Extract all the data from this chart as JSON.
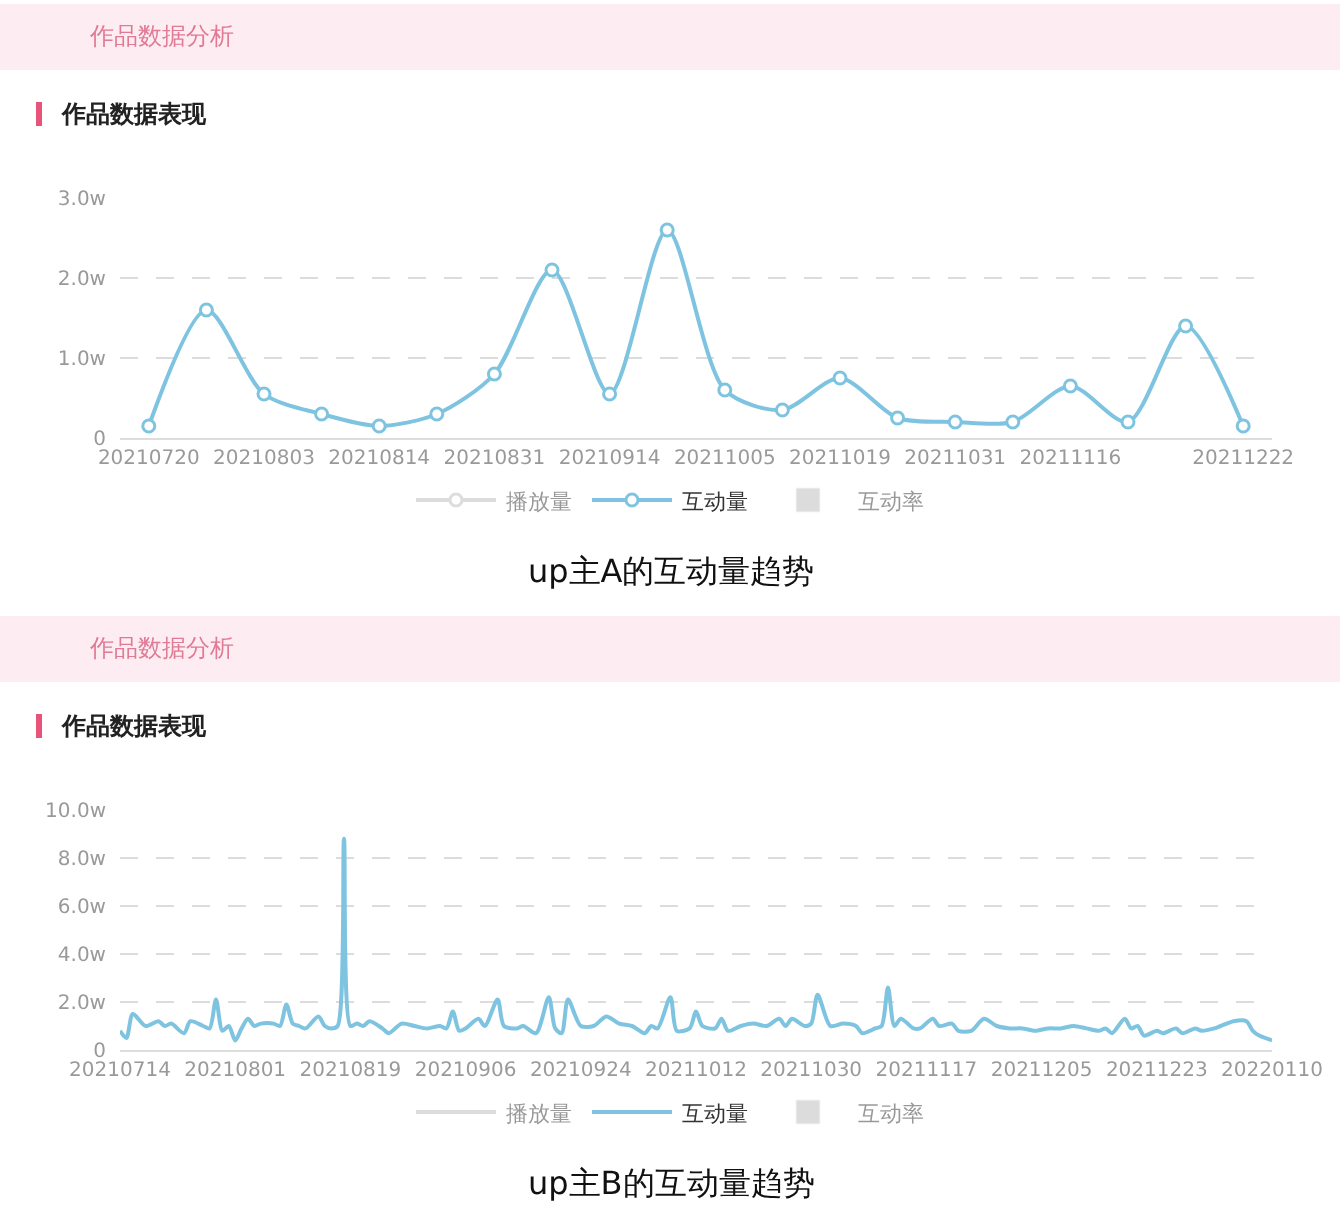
{
  "chart_data": [
    {
      "type": "line",
      "title": "作品数据分析",
      "subtitle": "作品数据表现",
      "annotations": [
        "up主A的互动量趋势"
      ],
      "categories": [
        "20210720",
        null,
        "20210803",
        null,
        "20210814",
        null,
        "20210831",
        null,
        "20210914",
        null,
        "20211005",
        null,
        "20211019",
        null,
        "20211031",
        null,
        "20211116",
        null,
        null,
        "20211222"
      ],
      "series": [
        {
          "name": "播放量",
          "color": "#bbbbbb",
          "values": [
            null,
            null,
            null,
            null,
            null,
            null,
            null,
            null,
            null,
            null,
            null,
            null,
            null,
            null,
            null,
            null,
            null,
            null,
            null,
            null
          ]
        },
        {
          "name": "互动量",
          "color": "#7ec4e0",
          "values": [
            0.15,
            1.6,
            0.55,
            0.3,
            0.15,
            0.3,
            0.8,
            2.1,
            0.55,
            2.6,
            0.6,
            0.35,
            0.75,
            0.25,
            0.2,
            0.2,
            0.65,
            0.2,
            1.4,
            0.15
          ]
        },
        {
          "name": "互动率",
          "type": "bar",
          "color": "#bbbbbb",
          "values": [
            null,
            null,
            null,
            null,
            null,
            null,
            null,
            null,
            null,
            null,
            null,
            null,
            null,
            null,
            null,
            null,
            null,
            null,
            null,
            null
          ]
        }
      ],
      "ylim": [
        0,
        3
      ],
      "yticks": [
        0,
        {
          "value": 1,
          "label": "1.0w"
        },
        {
          "value": 2,
          "label": "2.0w"
        },
        {
          "value": 3,
          "label": "3.0w"
        }
      ],
      "grid": "y",
      "legend": "bottom",
      "marker": "circle",
      "line_style": "solid"
    },
    {
      "type": "line",
      "title": "作品数据分析",
      "subtitle": "作品数据表现",
      "annotations": [
        "up主B的互动量趋势"
      ],
      "x": [
        "2021-07-14",
        "2021-07-15",
        "2021-07-16",
        "2021-07-18",
        "2021-07-20",
        "2021-07-21",
        "2021-07-22",
        "2021-07-24",
        "2021-07-25",
        "2021-07-27",
        "2021-07-28",
        "2021-07-29",
        "2021-07-30",
        "2021-07-31",
        "2021-08-01",
        "2021-08-02",
        "2021-08-03",
        "2021-08-04",
        "2021-08-05",
        "2021-08-07",
        "2021-08-08",
        "2021-08-09",
        "2021-08-10",
        "2021-08-11",
        "2021-08-12",
        "2021-08-14",
        "2021-08-15",
        "2021-08-16",
        "2021-08-17",
        "2021-08-18",
        "2021-08-19",
        "2021-08-20",
        "2021-08-21",
        "2021-08-22",
        "2021-08-24",
        "2021-08-25",
        "2021-08-27",
        "2021-08-29",
        "2021-08-31",
        "2021-09-02",
        "2021-09-03",
        "2021-09-04",
        "2021-09-05",
        "2021-09-06",
        "2021-09-08",
        "2021-09-09",
        "2021-09-11",
        "2021-09-12",
        "2021-09-14",
        "2021-09-15",
        "2021-09-17",
        "2021-09-19",
        "2021-09-20",
        "2021-09-21",
        "2021-09-22",
        "2021-09-24",
        "2021-09-26",
        "2021-09-28",
        "2021-09-30",
        "2021-10-02",
        "2021-10-04",
        "2021-10-05",
        "2021-10-06",
        "2021-10-08",
        "2021-10-09",
        "2021-10-11",
        "2021-10-12",
        "2021-10-13",
        "2021-10-15",
        "2021-10-16",
        "2021-10-17",
        "2021-10-19",
        "2021-10-21",
        "2021-10-23",
        "2021-10-25",
        "2021-10-26",
        "2021-10-27",
        "2021-10-29",
        "2021-10-30",
        "2021-10-31",
        "2021-11-02",
        "2021-11-04",
        "2021-11-06",
        "2021-11-07",
        "2021-11-09",
        "2021-11-10",
        "2021-11-11",
        "2021-11-12",
        "2021-11-13",
        "2021-11-15",
        "2021-11-16",
        "2021-11-18",
        "2021-11-19",
        "2021-11-21",
        "2021-11-22",
        "2021-11-24",
        "2021-11-26",
        "2021-11-28",
        "2021-11-30",
        "2021-12-02",
        "2021-12-04",
        "2021-12-06",
        "2021-12-08",
        "2021-12-10",
        "2021-12-12",
        "2021-12-14",
        "2021-12-15",
        "2021-12-16",
        "2021-12-18",
        "2021-12-19",
        "2021-12-20",
        "2021-12-21",
        "2021-12-23",
        "2021-12-24",
        "2021-12-26",
        "2021-12-27",
        "2021-12-29",
        "2021-12-30",
        "2022-01-01",
        "2022-01-02",
        "2022-01-04",
        "2022-01-06",
        "2022-01-07",
        "2022-01-08",
        "2022-01-10"
      ],
      "series": [
        {
          "name": "播放量",
          "color": "#bbbbbb",
          "values": [
            null,
            null,
            null,
            null,
            null,
            null,
            null,
            null,
            null,
            null,
            null,
            null,
            null,
            null,
            null,
            null,
            null,
            null,
            null,
            null,
            null,
            null,
            null,
            null,
            null,
            null,
            null,
            null,
            null,
            null,
            null,
            null,
            null,
            null,
            null,
            null,
            null,
            null,
            null,
            null,
            null,
            null,
            null,
            null,
            null,
            null,
            null,
            null,
            null,
            null,
            null,
            null,
            null,
            null,
            null,
            null,
            null,
            null,
            null,
            null,
            null,
            null,
            null,
            null,
            null,
            null,
            null,
            null,
            null,
            null,
            null,
            null,
            null,
            null,
            null,
            null,
            null,
            null,
            null,
            null,
            null,
            null,
            null,
            null,
            null,
            null,
            null,
            null,
            null,
            null,
            null,
            null,
            null,
            null,
            null,
            null,
            null,
            null,
            null,
            null,
            null,
            null,
            null,
            null,
            null,
            null,
            null,
            null,
            null,
            null,
            null,
            null,
            null,
            null,
            null,
            null,
            null,
            null,
            null,
            null,
            null,
            null,
            null,
            null,
            null
          ]
        },
        {
          "name": "互动量",
          "color": "#7ec4e0",
          "values": [
            0.8,
            0.5,
            1.5,
            1.0,
            1.2,
            1.0,
            1.1,
            0.7,
            1.2,
            1.0,
            0.9,
            2.1,
            0.8,
            1.0,
            0.4,
            0.9,
            1.3,
            1.0,
            1.1,
            1.1,
            1.0,
            1.9,
            1.1,
            1.0,
            0.9,
            1.4,
            1.0,
            0.9,
            1.0,
            8.8,
            1.0,
            1.1,
            1.0,
            1.2,
            0.9,
            0.7,
            1.1,
            1.0,
            0.9,
            1.0,
            0.9,
            1.6,
            0.8,
            0.9,
            1.3,
            1.0,
            2.1,
            1.0,
            0.9,
            1.0,
            0.7,
            2.2,
            0.9,
            0.7,
            2.1,
            1.0,
            1.0,
            1.4,
            1.1,
            1.0,
            0.7,
            1.0,
            0.9,
            2.2,
            0.8,
            0.9,
            1.6,
            1.0,
            0.9,
            1.3,
            0.8,
            1.0,
            1.1,
            1.0,
            1.3,
            1.0,
            1.3,
            1.0,
            1.1,
            2.3,
            1.0,
            1.1,
            1.0,
            0.7,
            0.9,
            1.0,
            2.6,
            1.0,
            1.3,
            0.9,
            0.9,
            1.3,
            1.0,
            1.1,
            0.8,
            0.8,
            1.3,
            1.0,
            0.9,
            0.9,
            0.8,
            0.9,
            0.9,
            1.0,
            0.9,
            0.8,
            0.9,
            0.7,
            1.3,
            0.9,
            1.0,
            0.6,
            0.8,
            0.7,
            0.9,
            0.7,
            0.9,
            0.8,
            0.9,
            1.0,
            1.2,
            1.2,
            0.8,
            0.6,
            0.4
          ]
        },
        {
          "name": "互动率",
          "type": "bar",
          "color": "#bbbbbb",
          "values": [
            null,
            null,
            null,
            null,
            null,
            null,
            null,
            null,
            null,
            null,
            null,
            null,
            null,
            null,
            null,
            null,
            null,
            null,
            null,
            null,
            null,
            null,
            null,
            null,
            null,
            null,
            null,
            null,
            null,
            null,
            null,
            null,
            null,
            null,
            null,
            null,
            null,
            null,
            null,
            null,
            null,
            null,
            null,
            null,
            null,
            null,
            null,
            null,
            null,
            null,
            null,
            null,
            null,
            null,
            null,
            null,
            null,
            null,
            null,
            null,
            null,
            null,
            null,
            null,
            null,
            null,
            null,
            null,
            null,
            null,
            null,
            null,
            null,
            null,
            null,
            null,
            null,
            null,
            null,
            null,
            null,
            null,
            null,
            null,
            null,
            null,
            null,
            null,
            null,
            null,
            null,
            null,
            null,
            null,
            null,
            null,
            null,
            null,
            null,
            null,
            null,
            null,
            null,
            null,
            null,
            null,
            null,
            null,
            null,
            null,
            null,
            null,
            null,
            null,
            null,
            null,
            null,
            null,
            null,
            null,
            null,
            null,
            null,
            null,
            null
          ]
        }
      ],
      "xlim": [
        "2021-07-14",
        "2022-01-10"
      ],
      "xticks": [
        {
          "value": "2021-07-14",
          "label": "20210714"
        },
        {
          "value": "2021-08-01",
          "label": "20210801"
        },
        {
          "value": "2021-08-19",
          "label": "20210819"
        },
        {
          "value": "2021-09-06",
          "label": "20210906"
        },
        {
          "value": "2021-09-24",
          "label": "20210924"
        },
        {
          "value": "2021-10-12",
          "label": "20211012"
        },
        {
          "value": "2021-10-30",
          "label": "20211030"
        },
        {
          "value": "2021-11-17",
          "label": "20211117"
        },
        {
          "value": "2021-12-05",
          "label": "20211205"
        },
        {
          "value": "2021-12-23",
          "label": "20211223"
        },
        {
          "value": "2022-01-10",
          "label": "20220110"
        }
      ],
      "ylim": [
        0,
        10
      ],
      "yticks": [
        0,
        {
          "value": 2,
          "label": "2.0w"
        },
        {
          "value": 4,
          "label": "4.0w"
        },
        {
          "value": 6,
          "label": "6.0w"
        },
        {
          "value": 8,
          "label": "8.0w"
        },
        {
          "value": 10,
          "label": "10.0w"
        }
      ],
      "grid": "y",
      "legend": "bottom",
      "line_style": "solid"
    }
  ]
}
